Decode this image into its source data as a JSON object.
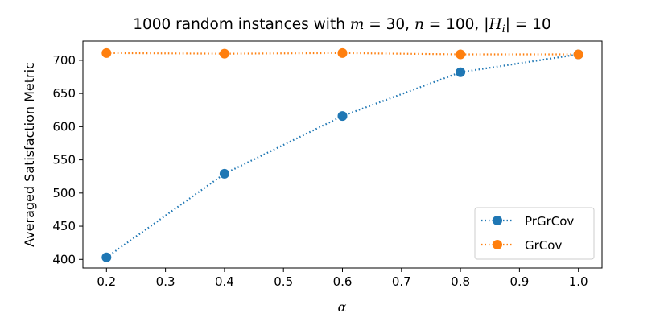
{
  "chart_data": {
    "type": "line",
    "title": {
      "prefix": "1000 random instances with ",
      "m_var": "m",
      "m_eq": " = 30, ",
      "n_var": "n",
      "n_eq": " = 100, |",
      "h_var": "H",
      "h_sub": "i",
      "h_eq": "| = 10"
    },
    "xlabel": "α",
    "ylabel": "Averaged Satisfaction Metric",
    "x": [
      0.2,
      0.4,
      0.6,
      0.8,
      1.0
    ],
    "xlim": [
      0.16,
      1.04
    ],
    "ylim": [
      387,
      729
    ],
    "x_ticks": [
      "0.2",
      "0.3",
      "0.4",
      "0.5",
      "0.6",
      "0.7",
      "0.8",
      "0.9",
      "1.0"
    ],
    "y_ticks": [
      "400",
      "450",
      "500",
      "550",
      "600",
      "650",
      "700"
    ],
    "grid": false,
    "legend_position": "lower-right",
    "series": [
      {
        "name": "PrGrCov",
        "color": "#1f77b4",
        "linestyle": "dotted",
        "marker": "circle",
        "values": [
          403,
          529,
          616,
          682,
          709
        ]
      },
      {
        "name": "GrCov",
        "color": "#ff7f0e",
        "linestyle": "dotted",
        "marker": "circle",
        "values": [
          711,
          710,
          711,
          709,
          709
        ]
      }
    ]
  }
}
